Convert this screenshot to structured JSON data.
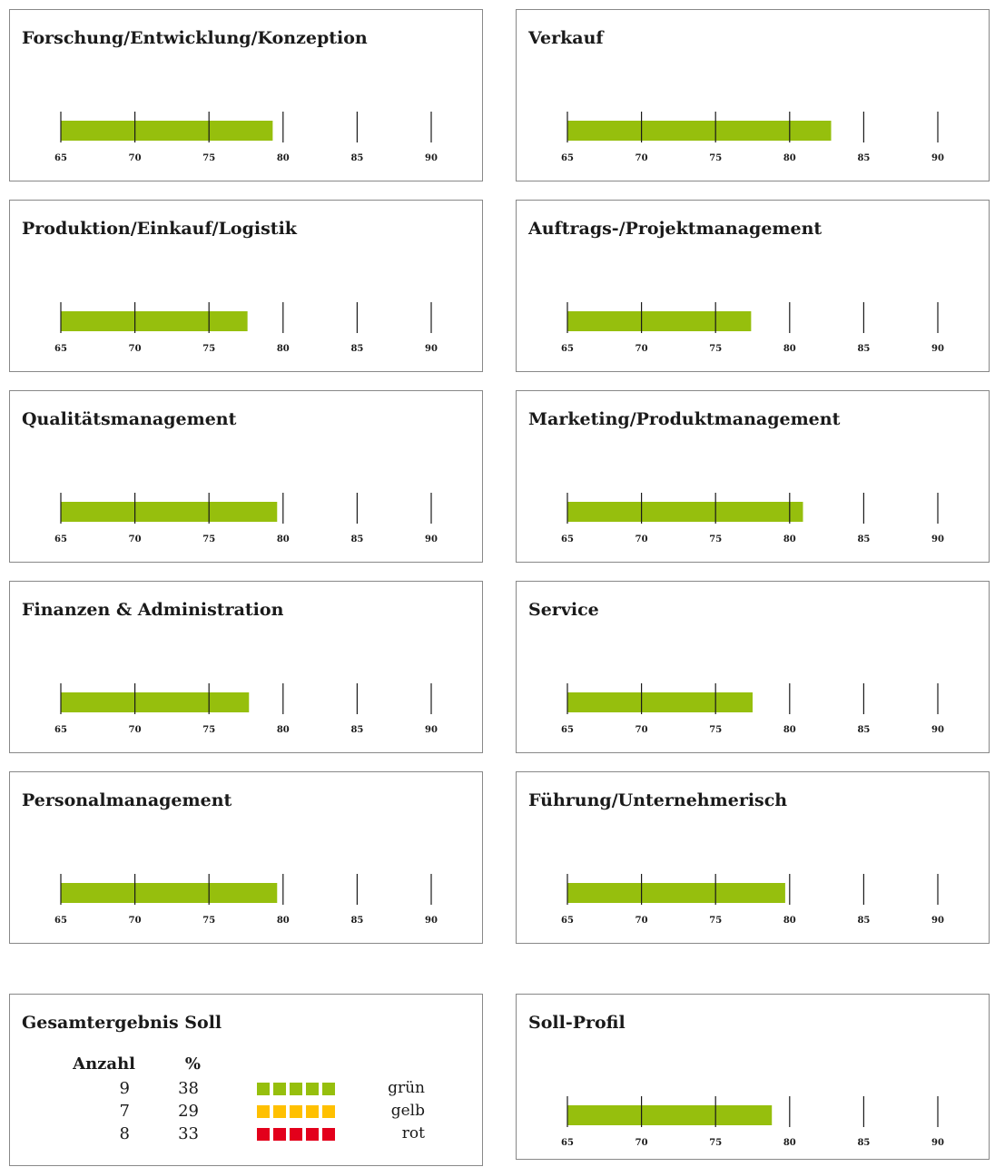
{
  "colors": {
    "bar": "#96bf0d",
    "green": "#96bf0d",
    "yellow": "#ffc000",
    "red": "#e3001b",
    "axis": "#1a1a1a",
    "border": "#888888"
  },
  "chart_data": [
    {
      "type": "bar",
      "title": "Forschung/Entwicklung/Konzeption",
      "value": 79.3,
      "xlim": [
        65,
        90
      ],
      "ticks": [
        "65",
        "70",
        "75",
        "80",
        "85",
        "90"
      ]
    },
    {
      "type": "bar",
      "title": "Verkauf",
      "value": 82.8,
      "xlim": [
        65,
        90
      ],
      "ticks": [
        "65",
        "70",
        "75",
        "80",
        "85",
        "90"
      ]
    },
    {
      "type": "bar",
      "title": "Produktion/Einkauf/Logistik",
      "value": 77.6,
      "xlim": [
        65,
        90
      ],
      "ticks": [
        "65",
        "70",
        "75",
        "80",
        "85",
        "90"
      ]
    },
    {
      "type": "bar",
      "title": "Auftrags-/Projektmanagement",
      "value": 77.4,
      "xlim": [
        65,
        90
      ],
      "ticks": [
        "65",
        "70",
        "75",
        "80",
        "85",
        "90"
      ]
    },
    {
      "type": "bar",
      "title": "Qualitätsmanagement",
      "value": 79.6,
      "xlim": [
        65,
        90
      ],
      "ticks": [
        "65",
        "70",
        "75",
        "80",
        "85",
        "90"
      ]
    },
    {
      "type": "bar",
      "title": "Marketing/Produktmanagement",
      "value": 80.9,
      "xlim": [
        65,
        90
      ],
      "ticks": [
        "65",
        "70",
        "75",
        "80",
        "85",
        "90"
      ]
    },
    {
      "type": "bar",
      "title": "Finanzen & Administration",
      "value": 77.7,
      "xlim": [
        65,
        90
      ],
      "ticks": [
        "65",
        "70",
        "75",
        "80",
        "85",
        "90"
      ]
    },
    {
      "type": "bar",
      "title": "Service",
      "value": 77.5,
      "xlim": [
        65,
        90
      ],
      "ticks": [
        "65",
        "70",
        "75",
        "80",
        "85",
        "90"
      ]
    },
    {
      "type": "bar",
      "title": "Personalmanagement",
      "value": 79.6,
      "xlim": [
        65,
        90
      ],
      "ticks": [
        "65",
        "70",
        "75",
        "80",
        "85",
        "90"
      ]
    },
    {
      "type": "bar",
      "title": "Führung/Unternehmerisch",
      "value": 79.7,
      "xlim": [
        65,
        90
      ],
      "ticks": [
        "65",
        "70",
        "75",
        "80",
        "85",
        "90"
      ]
    },
    {
      "type": "bar",
      "title": "Soll-Profil",
      "value": 78.8,
      "xlim": [
        65,
        90
      ],
      "ticks": [
        "65",
        "70",
        "75",
        "80",
        "85",
        "90"
      ]
    }
  ],
  "summary": {
    "title": "Gesamtergebnis Soll",
    "col_count": "Anzahl",
    "col_percent": "%",
    "rows": [
      {
        "count": "9",
        "percent": "38",
        "label": "grün",
        "color": "#96bf0d"
      },
      {
        "count": "7",
        "percent": "29",
        "label": "gelb",
        "color": "#ffc000"
      },
      {
        "count": "8",
        "percent": "33",
        "label": "rot",
        "color": "#e3001b"
      }
    ]
  }
}
